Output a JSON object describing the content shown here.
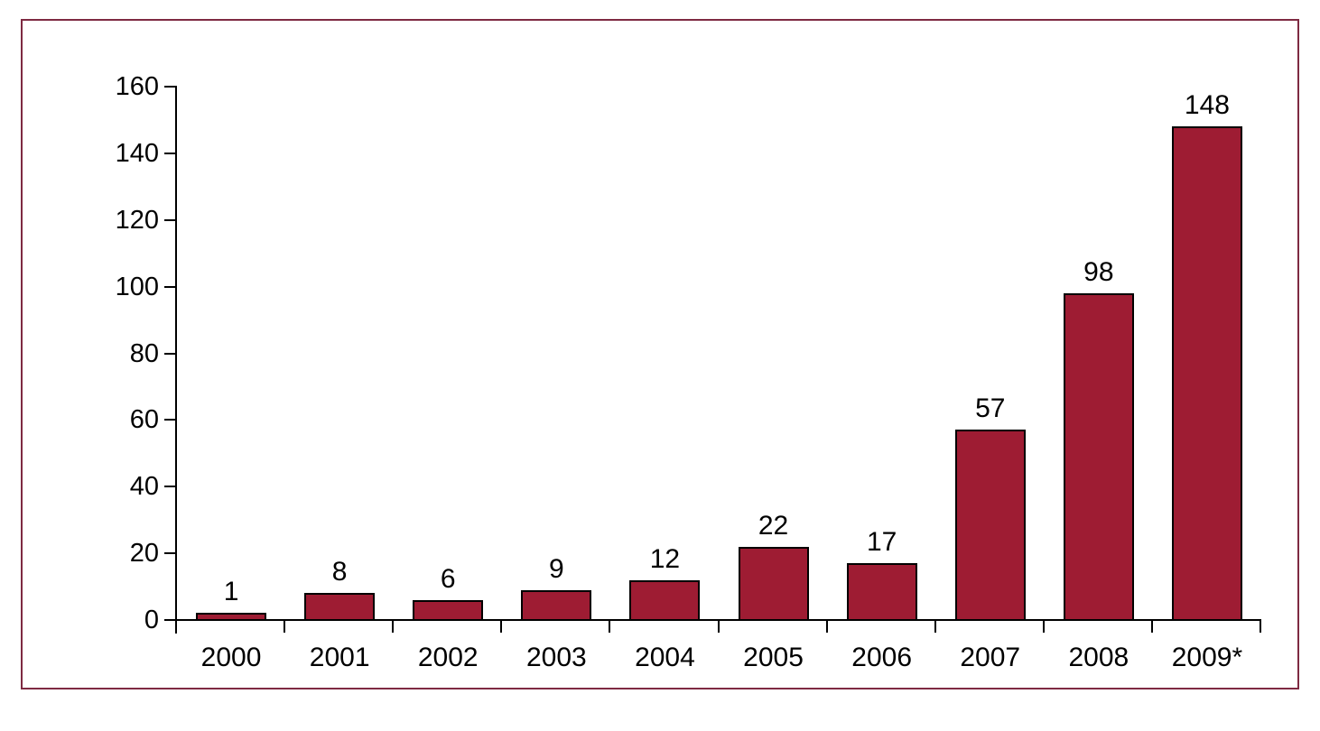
{
  "frame": {
    "border_color": "#7E2A42",
    "background": "#FFFFFF"
  },
  "chart_data": {
    "type": "bar",
    "categories": [
      "2000",
      "2001",
      "2002",
      "2003",
      "2004",
      "2005",
      "2006",
      "2007",
      "2008",
      "2009*"
    ],
    "values": [
      1,
      8,
      6,
      9,
      12,
      22,
      17,
      57,
      98,
      148
    ],
    "data_labels": [
      "1",
      "8",
      "6",
      "9",
      "12",
      "22",
      "17",
      "57",
      "98",
      "148"
    ],
    "title": "",
    "xlabel": "",
    "ylabel": "",
    "ylim": [
      0,
      160
    ],
    "yticks": [
      0,
      20,
      40,
      60,
      80,
      100,
      120,
      140,
      160
    ],
    "grid": false,
    "legend": false,
    "bar_color": "#9E1C33",
    "bar_border_color": "#000000",
    "axis_color": "#000000",
    "label_color": "#000000"
  }
}
